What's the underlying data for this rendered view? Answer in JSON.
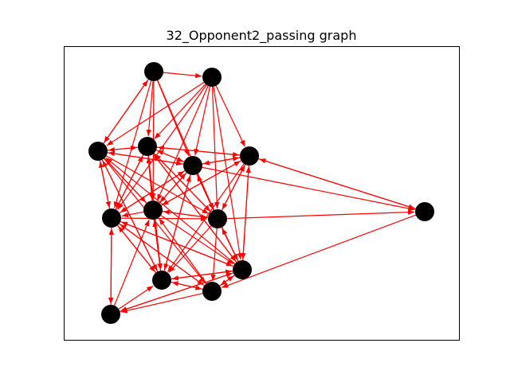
{
  "figure": {
    "title": "32_Opponent2_passing graph"
  },
  "colors": {
    "edge": "#ff0000",
    "node": "#000000",
    "frame": "#000000",
    "background": "#ffffff"
  },
  "graph": {
    "directed": true,
    "nodes": [
      {
        "id": "n1"
      },
      {
        "id": "n2"
      },
      {
        "id": "n3"
      },
      {
        "id": "n4"
      },
      {
        "id": "n5"
      },
      {
        "id": "n6"
      },
      {
        "id": "n7"
      },
      {
        "id": "n8"
      },
      {
        "id": "n9"
      },
      {
        "id": "n10"
      },
      {
        "id": "n11"
      },
      {
        "id": "n12"
      },
      {
        "id": "n13"
      },
      {
        "id": "n14"
      }
    ],
    "edges": [
      [
        "n1",
        "n2"
      ],
      [
        "n1",
        "n3"
      ],
      [
        "n1",
        "n4"
      ],
      [
        "n1",
        "n5"
      ],
      [
        "n1",
        "n8"
      ],
      [
        "n1",
        "n9"
      ],
      [
        "n1",
        "n7"
      ],
      [
        "n2",
        "n3"
      ],
      [
        "n2",
        "n4"
      ],
      [
        "n2",
        "n5"
      ],
      [
        "n2",
        "n6"
      ],
      [
        "n2",
        "n7"
      ],
      [
        "n2",
        "n8"
      ],
      [
        "n2",
        "n9"
      ],
      [
        "n2",
        "n12"
      ],
      [
        "n3",
        "n1"
      ],
      [
        "n3",
        "n4"
      ],
      [
        "n3",
        "n5"
      ],
      [
        "n3",
        "n7"
      ],
      [
        "n3",
        "n8"
      ],
      [
        "n3",
        "n11"
      ],
      [
        "n3",
        "n13"
      ],
      [
        "n3",
        "n9"
      ],
      [
        "n4",
        "n3"
      ],
      [
        "n4",
        "n5"
      ],
      [
        "n4",
        "n6"
      ],
      [
        "n4",
        "n7"
      ],
      [
        "n4",
        "n8"
      ],
      [
        "n4",
        "n9"
      ],
      [
        "n4",
        "n11"
      ],
      [
        "n4",
        "n12"
      ],
      [
        "n5",
        "n3"
      ],
      [
        "n5",
        "n4"
      ],
      [
        "n5",
        "n6"
      ],
      [
        "n5",
        "n7"
      ],
      [
        "n5",
        "n8"
      ],
      [
        "n5",
        "n9"
      ],
      [
        "n5",
        "n11"
      ],
      [
        "n5",
        "n12"
      ],
      [
        "n5",
        "n10"
      ],
      [
        "n6",
        "n4"
      ],
      [
        "n6",
        "n5"
      ],
      [
        "n6",
        "n8"
      ],
      [
        "n6",
        "n9"
      ],
      [
        "n6",
        "n10"
      ],
      [
        "n6",
        "n11"
      ],
      [
        "n6",
        "n12"
      ],
      [
        "n7",
        "n3"
      ],
      [
        "n7",
        "n4"
      ],
      [
        "n7",
        "n5"
      ],
      [
        "n7",
        "n9"
      ],
      [
        "n7",
        "n11"
      ],
      [
        "n7",
        "n12"
      ],
      [
        "n7",
        "n13"
      ],
      [
        "n7",
        "n14"
      ],
      [
        "n8",
        "n3"
      ],
      [
        "n8",
        "n4"
      ],
      [
        "n8",
        "n5"
      ],
      [
        "n8",
        "n6"
      ],
      [
        "n8",
        "n7"
      ],
      [
        "n8",
        "n9"
      ],
      [
        "n8",
        "n11"
      ],
      [
        "n8",
        "n12"
      ],
      [
        "n9",
        "n4"
      ],
      [
        "n9",
        "n5"
      ],
      [
        "n9",
        "n6"
      ],
      [
        "n9",
        "n8"
      ],
      [
        "n9",
        "n10"
      ],
      [
        "n9",
        "n11"
      ],
      [
        "n9",
        "n12"
      ],
      [
        "n9",
        "n13"
      ],
      [
        "n10",
        "n6"
      ],
      [
        "n10",
        "n13"
      ],
      [
        "n11",
        "n3"
      ],
      [
        "n11",
        "n5"
      ],
      [
        "n11",
        "n7"
      ],
      [
        "n11",
        "n8"
      ],
      [
        "n11",
        "n12"
      ],
      [
        "n11",
        "n13"
      ],
      [
        "n12",
        "n3"
      ],
      [
        "n12",
        "n4"
      ],
      [
        "n12",
        "n6"
      ],
      [
        "n12",
        "n7"
      ],
      [
        "n12",
        "n9"
      ],
      [
        "n12",
        "n11"
      ],
      [
        "n12",
        "n13"
      ],
      [
        "n12",
        "n14"
      ],
      [
        "n13",
        "n7"
      ],
      [
        "n13",
        "n8"
      ],
      [
        "n13",
        "n11"
      ],
      [
        "n13",
        "n12"
      ],
      [
        "n13",
        "n14"
      ],
      [
        "n14",
        "n7"
      ],
      [
        "n14",
        "n8"
      ],
      [
        "n14",
        "n11"
      ],
      [
        "n14",
        "n12"
      ]
    ]
  }
}
